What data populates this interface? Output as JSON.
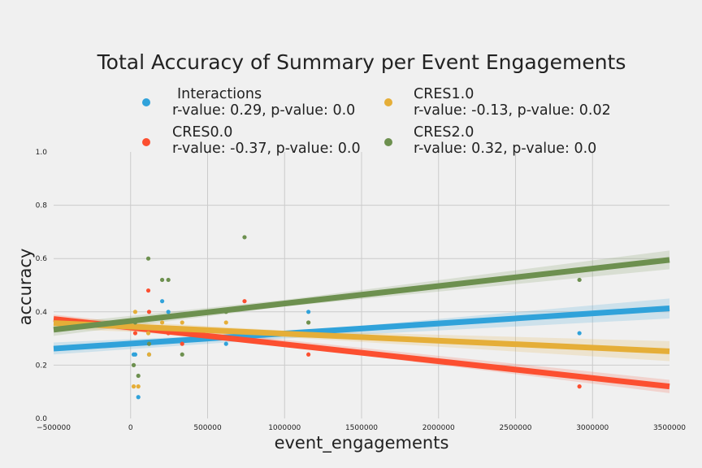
{
  "chart_data": {
    "type": "scatter",
    "title": "Total Accuracy of Summary per Event Engagements",
    "xlabel": "event_engagements",
    "ylabel": "accuracy",
    "xlim": [
      -500000,
      3500000
    ],
    "ylim": [
      0.0,
      1.0
    ],
    "x_ticks": [
      -500000,
      0,
      500000,
      1000000,
      1500000,
      2000000,
      2500000,
      3000000,
      3500000
    ],
    "x_tick_labels": [
      "−500000",
      "0",
      "500000",
      "1000000",
      "1500000",
      "2000000",
      "2500000",
      "3000000",
      "3500000"
    ],
    "y_ticks": [
      0.0,
      0.2,
      0.4,
      0.6,
      0.8,
      1.0
    ],
    "y_tick_labels": [
      "0.0",
      "0.2",
      "0.4",
      "0.6",
      "0.8",
      "1.0"
    ],
    "grid": true,
    "legend_placement": "top",
    "series": [
      {
        "name": "Interactions",
        "stats": "r-value: 0.29, p-value: 0.0",
        "color": "#30a2da",
        "points": [
          {
            "x": 20000,
            "y": 0.24
          },
          {
            "x": 30000,
            "y": 0.24
          },
          {
            "x": 50000,
            "y": 0.08
          },
          {
            "x": 120000,
            "y": 0.24
          },
          {
            "x": 205000,
            "y": 0.44
          },
          {
            "x": 245000,
            "y": 0.4
          },
          {
            "x": 620000,
            "y": 0.28
          },
          {
            "x": 1155000,
            "y": 0.4
          },
          {
            "x": 2915000,
            "y": 0.32
          }
        ],
        "fit": {
          "x": [
            -500000,
            3500000
          ],
          "y": [
            0.262,
            0.413
          ]
        },
        "ci": {
          "x": [
            -500000,
            1000000,
            3500000
          ],
          "upper": [
            0.285,
            0.322,
            0.45
          ],
          "lower": [
            0.24,
            0.3,
            0.375
          ]
        }
      },
      {
        "name": "CRES0.0",
        "stats": "r-value: -0.37, p-value: 0.0",
        "color": "#fc4f30",
        "points": [
          {
            "x": 30000,
            "y": 0.32
          },
          {
            "x": 115000,
            "y": 0.48
          },
          {
            "x": 120000,
            "y": 0.4
          },
          {
            "x": 245000,
            "y": 0.32
          },
          {
            "x": 335000,
            "y": 0.28
          },
          {
            "x": 740000,
            "y": 0.44
          },
          {
            "x": 1155000,
            "y": 0.24
          },
          {
            "x": 2915000,
            "y": 0.12
          }
        ],
        "fit": {
          "x": [
            -500000,
            3500000
          ],
          "y": [
            0.373,
            0.12
          ]
        },
        "ci": {
          "x": [
            -500000,
            1000000,
            3500000
          ],
          "upper": [
            0.39,
            0.295,
            0.145
          ],
          "lower": [
            0.355,
            0.272,
            0.095
          ]
        }
      },
      {
        "name": "CRES1.0",
        "stats": "r-value: -0.13, p-value: 0.02",
        "color": "#e5ae38",
        "points": [
          {
            "x": 20000,
            "y": 0.12
          },
          {
            "x": 30000,
            "y": 0.4
          },
          {
            "x": 50000,
            "y": 0.12
          },
          {
            "x": 115000,
            "y": 0.32
          },
          {
            "x": 120000,
            "y": 0.24
          },
          {
            "x": 205000,
            "y": 0.36
          },
          {
            "x": 335000,
            "y": 0.36
          },
          {
            "x": 620000,
            "y": 0.36
          },
          {
            "x": 1155000,
            "y": 0.36
          }
        ],
        "fit": {
          "x": [
            -500000,
            3500000
          ],
          "y": [
            0.358,
            0.252
          ]
        },
        "ci": {
          "x": [
            -500000,
            1000000,
            3500000
          ],
          "upper": [
            0.38,
            0.33,
            0.29
          ],
          "lower": [
            0.336,
            0.305,
            0.215
          ]
        }
      },
      {
        "name": "CRES2.0",
        "stats": "r-value: 0.32, p-value: 0.0",
        "color": "#6d904f",
        "points": [
          {
            "x": 20000,
            "y": 0.2
          },
          {
            "x": 30000,
            "y": 0.36
          },
          {
            "x": 50000,
            "y": 0.16
          },
          {
            "x": 115000,
            "y": 0.6
          },
          {
            "x": 120000,
            "y": 0.28
          },
          {
            "x": 205000,
            "y": 0.52
          },
          {
            "x": 245000,
            "y": 0.52
          },
          {
            "x": 335000,
            "y": 0.24
          },
          {
            "x": 620000,
            "y": 0.4
          },
          {
            "x": 740000,
            "y": 0.68
          },
          {
            "x": 1155000,
            "y": 0.36
          },
          {
            "x": 2915000,
            "y": 0.52
          }
        ],
        "fit": {
          "x": [
            -500000,
            3500000
          ],
          "y": [
            0.333,
            0.595
          ]
        },
        "ci": {
          "x": [
            -500000,
            1000000,
            3500000
          ],
          "upper": [
            0.355,
            0.445,
            0.63
          ],
          "lower": [
            0.31,
            0.42,
            0.56
          ]
        }
      }
    ]
  }
}
